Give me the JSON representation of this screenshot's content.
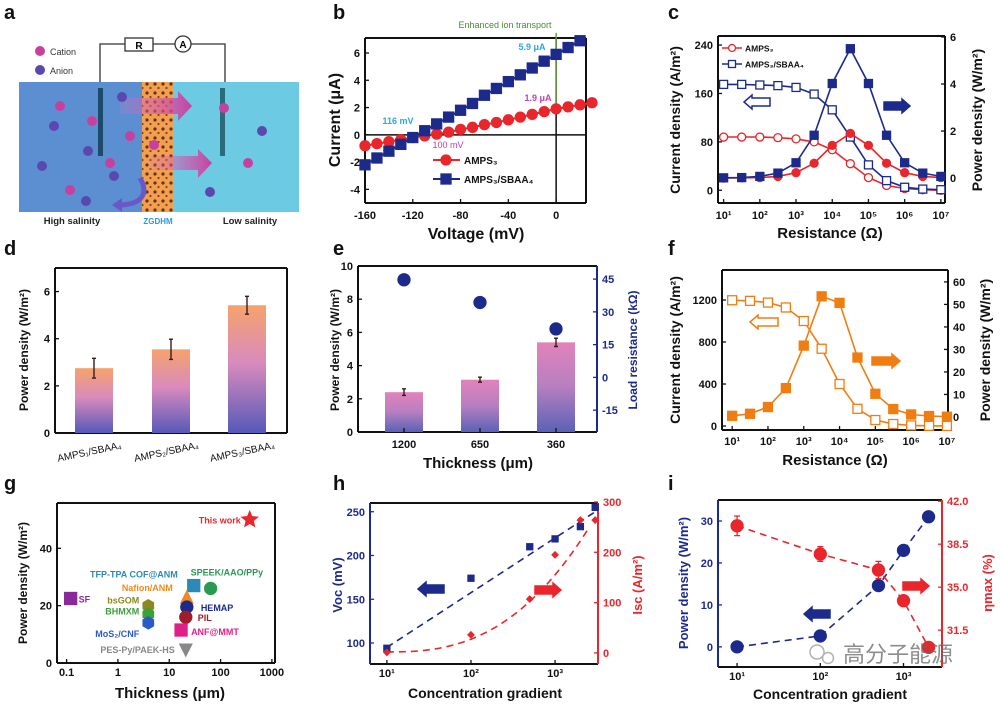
{
  "panel_letters": {
    "a": "a",
    "b": "b",
    "c": "c",
    "d": "d",
    "e": "e",
    "f": "f",
    "g": "g",
    "h": "h",
    "i": "i"
  },
  "schematic": {
    "legend": [
      "Cation",
      "Anion"
    ],
    "resistor": "R",
    "ammeter": "A",
    "left_label": "High salinity",
    "membrane_label": "ZGDHM",
    "right_label": "Low salinity",
    "colors": {
      "cation": "#c8409e",
      "anion": "#5a48b0",
      "high_salinity": "#5b8fd2",
      "low_salinity": "#6ccbe2",
      "membrane": "#f0a050"
    }
  },
  "watermark": "高分子能源",
  "chart_data": [
    {
      "panel": "b",
      "type": "line",
      "xlabel": "Voltage (mV)",
      "ylabel": "Current (μA)",
      "xlim": [
        -160,
        25
      ],
      "ylim": [
        -5,
        7.1
      ],
      "xticks": [
        -160,
        -120,
        -80,
        -40,
        0
      ],
      "yticks": [
        -4,
        -2,
        0,
        2,
        4,
        6
      ],
      "annotations": {
        "header": "Enhanced ion transport",
        "voc_blue": "116 mV",
        "voc_red": "100 mV",
        "isc_blue": "5.9 μA",
        "isc_red": "1.9 μA"
      },
      "legend_position": "bottom-center",
      "series": [
        {
          "name": "AMPS₃",
          "color": "#e8262b",
          "marker": "circle",
          "filled": true,
          "x": [
            -160,
            -150,
            -140,
            -130,
            -120,
            -110,
            -100,
            -90,
            -80,
            -70,
            -60,
            -50,
            -40,
            -30,
            -20,
            -10,
            0,
            10,
            20,
            30
          ],
          "y": [
            -0.8,
            -0.65,
            -0.5,
            -0.35,
            -0.2,
            -0.08,
            0.05,
            0.2,
            0.4,
            0.55,
            0.75,
            0.9,
            1.1,
            1.3,
            1.5,
            1.7,
            1.9,
            2.05,
            2.2,
            2.35
          ]
        },
        {
          "name": "AMPS₃/SBAA₄",
          "color": "#1c2a8c",
          "marker": "square",
          "filled": true,
          "x": [
            -160,
            -150,
            -140,
            -130,
            -120,
            -110,
            -100,
            -90,
            -80,
            -70,
            -60,
            -50,
            -40,
            -30,
            -20,
            -10,
            0,
            10,
            20
          ],
          "y": [
            -2.2,
            -1.7,
            -1.2,
            -0.7,
            -0.2,
            0.3,
            0.8,
            1.3,
            1.8,
            2.3,
            2.9,
            3.4,
            3.9,
            4.4,
            4.9,
            5.4,
            5.9,
            6.4,
            6.9
          ]
        }
      ]
    },
    {
      "panel": "c",
      "type": "line",
      "xlog": true,
      "xlabel": "Resistance (Ω)",
      "ylabel": "Current density (A/m²)",
      "y2label": "Power density (W/m²)",
      "xlim": [
        7,
        13000000
      ],
      "ylim": [
        -21,
        255
      ],
      "y2lim": [
        -1.06,
        6.04
      ],
      "xticks": [
        10,
        100,
        1000,
        10000,
        100000,
        1000000,
        10000000
      ],
      "xtick_labels": [
        "10¹",
        "10²",
        "10³",
        "10⁴",
        "10⁵",
        "10⁶",
        "10⁷"
      ],
      "yticks": [
        0,
        80,
        160,
        240
      ],
      "y2ticks": [
        0,
        2,
        4,
        6
      ],
      "legend_position": "top-left",
      "x": [
        10,
        31.6,
        100,
        316,
        1000,
        3162,
        10000,
        31623,
        100000,
        316228,
        1000000,
        3162278,
        10000000
      ],
      "series": [
        {
          "name": "AMPS₃",
          "axis": "left",
          "color": "#e8262b",
          "marker": "circle",
          "filled": false,
          "y": [
            88,
            88,
            88,
            87,
            85,
            80,
            67,
            44,
            21,
            8,
            3,
            1,
            0
          ]
        },
        {
          "name": "AMPS₃/SBAA₄",
          "axis": "left",
          "color": "#1c2a8c",
          "marker": "square",
          "filled": false,
          "y": [
            175,
            175,
            174,
            173,
            170,
            159,
            133,
            88,
            42,
            16,
            5,
            2,
            1
          ]
        },
        {
          "axis": "right",
          "color": "#e8262b",
          "marker": "circle",
          "filled": true,
          "y": [
            0,
            0.01,
            0.02,
            0.07,
            0.23,
            0.63,
            1.39,
            1.9,
            1.39,
            0.63,
            0.23,
            0.07,
            0.02
          ]
        },
        {
          "axis": "right",
          "color": "#1c2a8c",
          "marker": "square",
          "filled": true,
          "y": [
            0.01,
            0.02,
            0.07,
            0.21,
            0.65,
            1.82,
            4.02,
            5.5,
            4.02,
            1.82,
            0.65,
            0.21,
            0.07
          ]
        }
      ]
    },
    {
      "panel": "d",
      "type": "bar",
      "ylabel": "Power density (W/m²)",
      "ylim": [
        0,
        7
      ],
      "yticks": [
        0,
        2,
        4,
        6
      ],
      "categories": [
        "AMPS₁/SBAA₄",
        "AMPS₂/SBAA₄",
        "AMPS₃/SBAA₄"
      ],
      "values": [
        2.75,
        3.55,
        5.42
      ],
      "errors": [
        0.42,
        0.43,
        0.38
      ],
      "colors": {
        "top": "#f6a26c",
        "middle": "#d98bbd",
        "bottom": "#5659b8"
      }
    },
    {
      "panel": "e",
      "type": "bar",
      "xlabel": "Thickness (μm)",
      "ylabel": "Power density (W/m²)",
      "y2label": "Load resistance (kΩ)",
      "ylim": [
        0,
        10
      ],
      "y2lim": [
        -25,
        51
      ],
      "yticks": [
        0,
        2,
        4,
        6,
        8,
        10
      ],
      "y2ticks": [
        -15,
        0,
        15,
        30,
        45
      ],
      "categories": [
        "1200",
        "650",
        "360"
      ],
      "values": [
        2.4,
        3.15,
        5.4
      ],
      "errors": [
        0.2,
        0.15,
        0.25
      ],
      "load_resistance": [
        44.7,
        34.3,
        22.2
      ],
      "colors": {
        "top": "#e283bb",
        "bottom": "#5a62b6",
        "points": "#1c2a8c"
      }
    },
    {
      "panel": "f",
      "type": "line",
      "xlog": true,
      "xlabel": "Resistance (Ω)",
      "ylabel": "Current density (A/m²)",
      "y2label": "Power density (W/m²)",
      "xlim": [
        5.2,
        10700000
      ],
      "ylim": [
        -38,
        1486
      ],
      "y2lim": [
        -5.8,
        65.3
      ],
      "xticks": [
        10,
        100,
        1000,
        10000,
        100000,
        1000000,
        10000000
      ],
      "xtick_labels": [
        "10¹",
        "10²",
        "10³",
        "10⁴",
        "10⁵",
        "10⁶",
        "10⁷"
      ],
      "yticks": [
        0,
        400,
        800,
        1200
      ],
      "y2ticks": [
        0,
        10,
        20,
        30,
        40,
        50,
        60
      ],
      "x": [
        10,
        31.6,
        100,
        316,
        1000,
        3162,
        10000,
        31623,
        100000,
        316228,
        1000000,
        3162278,
        10000000
      ],
      "series": [
        {
          "axis": "left",
          "color": "#f07d12",
          "marker": "square",
          "filled": false,
          "y": [
            1198,
            1192,
            1176,
            1129,
            1000,
            736,
            400,
            164,
            57,
            19,
            6,
            2,
            1
          ]
        },
        {
          "axis": "right",
          "color": "#f07d12",
          "marker": "square",
          "filled": true,
          "y": [
            0.5,
            1.4,
            4.4,
            12.8,
            31.7,
            53.6,
            50.7,
            26.4,
            10.3,
            3.5,
            1.1,
            0.4,
            0.1
          ]
        }
      ]
    },
    {
      "panel": "g",
      "type": "scatter",
      "xlog": true,
      "xlabel": "Thickness (μm)",
      "ylabel": "Power density (W/m²)",
      "xlim": [
        0.065,
        1150
      ],
      "ylim": [
        0,
        55.8
      ],
      "xticks": [
        0.1,
        1,
        10,
        100,
        1000
      ],
      "xtick_labels": [
        "0.1",
        "1",
        "10",
        "100",
        "1000"
      ],
      "yticks": [
        0,
        20,
        40
      ],
      "points": [
        {
          "label": "This work",
          "x": 370,
          "y": 50,
          "color": "#e8262b",
          "marker": "star"
        },
        {
          "label": "SF",
          "x": 0.12,
          "y": 22.5,
          "color": "#8a2a9a",
          "marker": "square"
        },
        {
          "label": "TFP-TPA COF@ANM",
          "x": 30,
          "y": 27,
          "color": "#2a8ab8",
          "marker": "square"
        },
        {
          "label": "SPEEK/AAO/PPy",
          "x": 64,
          "y": 26,
          "color": "#2a9a50",
          "marker": "circle"
        },
        {
          "label": "Nafion/ANM",
          "x": 22,
          "y": 23,
          "color": "#f08a20",
          "marker": "triangle"
        },
        {
          "label": "bsGOM",
          "x": 3.9,
          "y": 20,
          "color": "#8a8a20",
          "marker": "hexagon"
        },
        {
          "label": "BHMXM",
          "x": 3.9,
          "y": 17,
          "color": "#3aa03a",
          "marker": "hexagon"
        },
        {
          "label": "MoS₂/CNF",
          "x": 3.9,
          "y": 14,
          "color": "#2a5ac8",
          "marker": "hexagon"
        },
        {
          "label": "HEMAP",
          "x": 22,
          "y": 19.5,
          "color": "#1c2a8c",
          "marker": "circle"
        },
        {
          "label": "PIL",
          "x": 21,
          "y": 16,
          "color": "#a01c2a",
          "marker": "circle"
        },
        {
          "label": "ANF@MMT",
          "x": 17,
          "y": 11.5,
          "color": "#e0208a",
          "marker": "square"
        },
        {
          "label": "PES-Py/PAEK-HS",
          "x": 21,
          "y": 4.5,
          "color": "#888888",
          "marker": "triangle-down"
        }
      ]
    },
    {
      "panel": "h",
      "type": "scatter",
      "xlog": true,
      "xlabel": "Concentration gradient",
      "ylabel": "Voc (mV)",
      "y2label": "Isc (A/m²)",
      "xlim": [
        6.3,
        3240
      ],
      "ylim": [
        76,
        260
      ],
      "y2lim": [
        -22,
        298
      ],
      "xticks": [
        10,
        100,
        1000
      ],
      "xtick_labels": [
        "10¹",
        "10²",
        "10³"
      ],
      "yticks": [
        100,
        150,
        200,
        250
      ],
      "y2ticks": [
        0,
        100,
        200,
        300
      ],
      "series": [
        {
          "name": "Voc",
          "axis": "left",
          "color": "#1c2a8c",
          "marker": "square",
          "x": [
            10,
            100,
            500,
            1000,
            2000,
            3000
          ],
          "y": [
            94,
            174,
            210,
            219,
            233,
            255
          ]
        },
        {
          "name": "Isc",
          "axis": "right",
          "color": "#e8262b",
          "marker": "diamond",
          "x": [
            10,
            100,
            500,
            1000,
            2000,
            3000
          ],
          "y": [
            1,
            36,
            107,
            195,
            264,
            264
          ]
        }
      ]
    },
    {
      "panel": "i",
      "type": "scatter",
      "xlog": true,
      "xlabel": "Concentration gradient",
      "ylabel": "Power density (W/m²)",
      "y2label": "ηmax (%)",
      "xlim": [
        5.9,
        2900
      ],
      "ylim": [
        -4.8,
        35
      ],
      "y2lim": [
        28.5,
        42.1
      ],
      "xticks": [
        10,
        100,
        1000
      ],
      "xtick_labels": [
        "10¹",
        "10²",
        "10³"
      ],
      "yticks": [
        0,
        10,
        20,
        30
      ],
      "y2ticks": [
        31.5,
        35.0,
        38.5,
        42.0
      ],
      "y2tick_labels": [
        "31.5",
        "35.0",
        "38.5",
        "42.0"
      ],
      "series": [
        {
          "name": "Power density",
          "axis": "left",
          "color": "#1c2a8c",
          "marker": "circle",
          "x": [
            10,
            100,
            500,
            1000,
            2000
          ],
          "y": [
            0,
            2.6,
            14.6,
            23,
            31
          ]
        },
        {
          "name": "ηmax",
          "axis": "right",
          "color": "#e8262b",
          "marker": "circle",
          "x": [
            10,
            100,
            500,
            1000,
            2000
          ],
          "y": [
            40.0,
            37.7,
            36.4,
            33.9,
            30.1
          ],
          "errors": [
            0.8,
            0.6,
            0.7,
            0,
            0
          ]
        }
      ]
    }
  ]
}
